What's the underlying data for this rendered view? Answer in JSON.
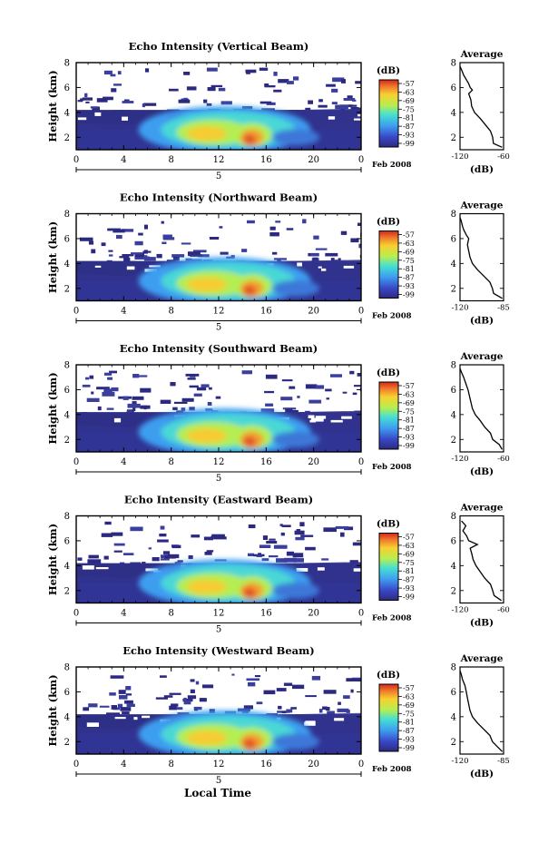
{
  "figure": {
    "x_label": "Local Time",
    "date_label": "Feb 2008",
    "day_label": "5",
    "colorbar_unit": "(dB)",
    "avg_title": "Average",
    "avg_xlabel": "(dB)",
    "avg_ylabel": "",
    "y_label": "Height (km)"
  },
  "chart_data": [
    {
      "type": "heatmap",
      "title": "Echo Intensity (Vertical Beam)",
      "ylabel": "Height (km)",
      "x_ticks": [
        "0",
        "4",
        "8",
        "12",
        "16",
        "20",
        "0"
      ],
      "y_ticks": [
        "2",
        "4",
        "6",
        "8"
      ],
      "xlim": [
        0,
        24
      ],
      "ylim": [
        1,
        8
      ],
      "colorbar": {
        "label": "(dB)",
        "ticks": [
          "-57",
          "-63",
          "-69",
          "-75",
          "-81",
          "-87",
          "-93",
          "-99"
        ]
      },
      "profile": {
        "title": "Average",
        "xlabel": "(dB)",
        "x_ticks": [
          "-120",
          "-60"
        ],
        "xlim": [
          -120,
          -60
        ],
        "y_ticks": [
          "2",
          "4",
          "6",
          "8"
        ],
        "y": [
          1.2,
          1.5,
          2.0,
          2.5,
          3.0,
          3.5,
          4.0,
          4.5,
          5.0,
          5.5,
          5.8,
          6.0,
          6.3,
          6.6,
          7.0,
          7.3,
          7.7
        ],
        "x": [
          -62,
          -74,
          -75,
          -78,
          -85,
          -92,
          -100,
          -104,
          -105,
          -108,
          -103,
          -106,
          -108,
          -111,
          -115,
          -117,
          -120
        ]
      }
    },
    {
      "type": "heatmap",
      "title": "Echo Intensity (Northward Beam)",
      "ylabel": "Height (km)",
      "x_ticks": [
        "0",
        "4",
        "8",
        "12",
        "16",
        "20",
        "0"
      ],
      "y_ticks": [
        "2",
        "4",
        "6",
        "8"
      ],
      "xlim": [
        0,
        24
      ],
      "ylim": [
        1,
        8
      ],
      "colorbar": {
        "label": "(dB)",
        "ticks": [
          "-57",
          "-63",
          "-69",
          "-75",
          "-81",
          "-87",
          "-93",
          "-99"
        ]
      },
      "profile": {
        "title": "Average",
        "xlabel": "(dB)",
        "x_ticks": [
          "-120",
          "-85"
        ],
        "xlim": [
          -120,
          -85
        ],
        "y_ticks": [
          "2",
          "4",
          "6",
          "8"
        ],
        "y": [
          1.2,
          1.6,
          2.0,
          2.5,
          3.0,
          3.5,
          4.0,
          4.5,
          5.0,
          5.5,
          6.0,
          6.3,
          6.7,
          7.0,
          7.4,
          7.7
        ],
        "x": [
          -86,
          -93,
          -94,
          -96,
          -101,
          -106,
          -110,
          -112,
          -113,
          -114,
          -113,
          -115,
          -117,
          -118,
          -119,
          -120
        ]
      }
    },
    {
      "type": "heatmap",
      "title": "Echo Intensity (Southward Beam)",
      "ylabel": "Height (km)",
      "x_ticks": [
        "0",
        "4",
        "8",
        "12",
        "16",
        "20",
        "0"
      ],
      "y_ticks": [
        "2",
        "4",
        "6",
        "8"
      ],
      "xlim": [
        0,
        24
      ],
      "ylim": [
        1,
        8
      ],
      "colorbar": {
        "label": "(dB)",
        "ticks": [
          "-57",
          "-63",
          "-69",
          "-75",
          "-81",
          "-87",
          "-93",
          "-99"
        ]
      },
      "profile": {
        "title": "Average",
        "xlabel": "(dB)",
        "x_ticks": [
          "-120",
          "-60"
        ],
        "xlim": [
          -120,
          -60
        ],
        "y_ticks": [
          "2",
          "4",
          "6",
          "8"
        ],
        "y": [
          1.2,
          1.6,
          2.0,
          2.5,
          3.0,
          3.5,
          4.0,
          4.5,
          5.0,
          5.5,
          6.0,
          6.5,
          7.0,
          7.4,
          7.7
        ],
        "x": [
          -62,
          -66,
          -75,
          -78,
          -86,
          -92,
          -99,
          -103,
          -105,
          -107,
          -109,
          -112,
          -115,
          -118,
          -120
        ]
      }
    },
    {
      "type": "heatmap",
      "title": "Echo Intensity (Eastward Beam)",
      "ylabel": "Height (km)",
      "x_ticks": [
        "0",
        "4",
        "8",
        "12",
        "16",
        "20",
        "0"
      ],
      "y_ticks": [
        "2",
        "4",
        "6",
        "8"
      ],
      "xlim": [
        0,
        24
      ],
      "ylim": [
        1,
        8
      ],
      "colorbar": {
        "label": "(dB)",
        "ticks": [
          "-57",
          "-63",
          "-69",
          "-75",
          "-81",
          "-87",
          "-93",
          "-99"
        ]
      },
      "profile": {
        "title": "Average",
        "xlabel": "(dB)",
        "x_ticks": [
          "-120",
          "-60"
        ],
        "xlim": [
          -120,
          -60
        ],
        "y_ticks": [
          "2",
          "4",
          "6",
          "8"
        ],
        "y": [
          1.2,
          1.6,
          2.0,
          2.5,
          3.0,
          3.5,
          4.0,
          4.5,
          5.0,
          5.4,
          5.7,
          6.0,
          6.4,
          6.8,
          7.2,
          7.6
        ],
        "x": [
          -63,
          -73,
          -75,
          -78,
          -86,
          -92,
          -98,
          -102,
          -104,
          -106,
          -96,
          -108,
          -111,
          -116,
          -112,
          -118
        ]
      }
    },
    {
      "type": "heatmap",
      "title": "Echo Intensity (Westward Beam)",
      "ylabel": "Height (km)",
      "x_ticks": [
        "0",
        "4",
        "8",
        "12",
        "16",
        "20",
        "0"
      ],
      "y_ticks": [
        "2",
        "4",
        "6",
        "8"
      ],
      "xlim": [
        0,
        24
      ],
      "ylim": [
        1,
        8
      ],
      "colorbar": {
        "label": "(dB)",
        "ticks": [
          "-57",
          "-63",
          "-69",
          "-75",
          "-81",
          "-87",
          "-93",
          "-99"
        ]
      },
      "profile": {
        "title": "Average",
        "xlabel": "(dB)",
        "x_ticks": [
          "-120",
          "-85"
        ],
        "xlim": [
          -120,
          -85
        ],
        "y_ticks": [
          "2",
          "4",
          "6",
          "8"
        ],
        "y": [
          1.2,
          1.6,
          2.0,
          2.5,
          3.0,
          3.5,
          4.0,
          4.5,
          5.0,
          5.5,
          6.0,
          6.5,
          7.0,
          7.4,
          7.7
        ],
        "x": [
          -86,
          -90,
          -94,
          -96,
          -101,
          -106,
          -110,
          -112,
          -113,
          -114,
          -115,
          -116,
          -118,
          -119,
          -120
        ]
      }
    }
  ]
}
